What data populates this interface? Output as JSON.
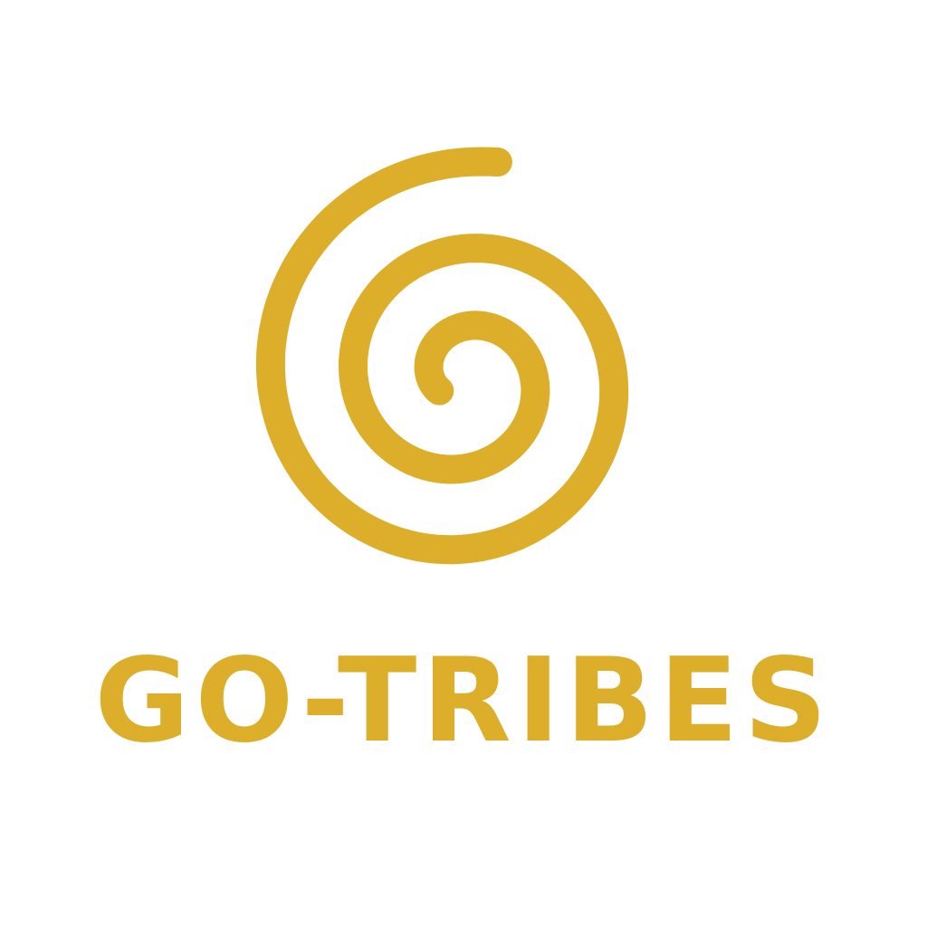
{
  "brand": {
    "name": "GO-TRIBES",
    "color": "#DDAE2A",
    "background": "#FFFFFF",
    "icon": "spiral-icon"
  }
}
